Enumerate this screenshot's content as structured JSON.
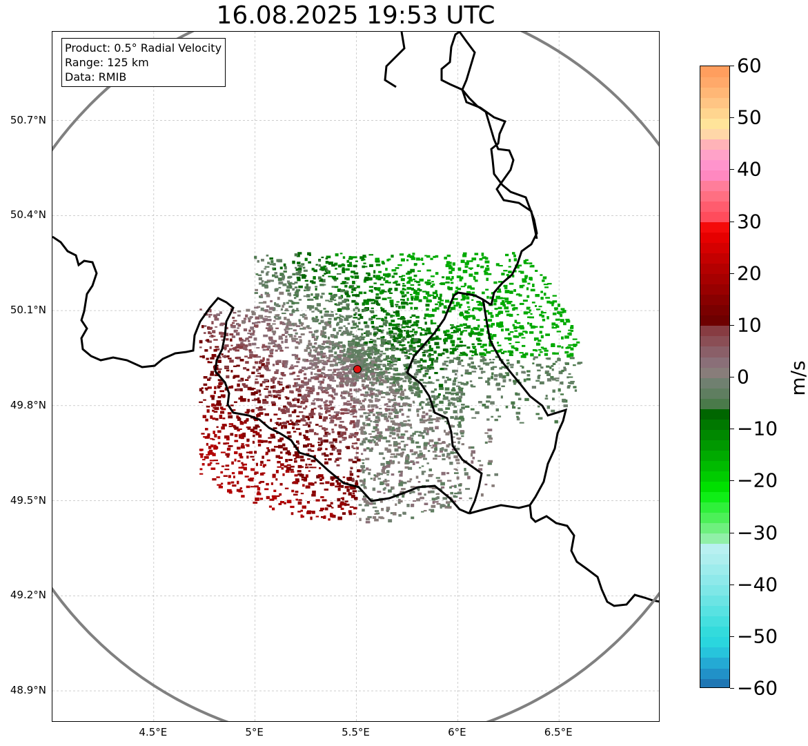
{
  "title": "16.08.2025 19:53 UTC",
  "info": {
    "product": "Product: 0.5° Radial Velocity",
    "range": "Range: 125 km",
    "data": "Data: RMIB"
  },
  "map": {
    "lon_range": [
      4.0,
      7.0
    ],
    "lat_range": [
      48.8,
      50.98
    ],
    "radar_site": {
      "lon": 5.505,
      "lat": 49.915
    },
    "range_ring_km": 125,
    "gridlines": true,
    "lat_ticks": [
      {
        "value": 50.7,
        "label": "50.7°N"
      },
      {
        "value": 50.4,
        "label": "50.4°N"
      },
      {
        "value": 50.1,
        "label": "50.1°N"
      },
      {
        "value": 49.8,
        "label": "49.8°N"
      },
      {
        "value": 49.5,
        "label": "49.5°N"
      },
      {
        "value": 49.2,
        "label": "49.2°N"
      },
      {
        "value": 48.9,
        "label": "48.9°N"
      }
    ],
    "lon_ticks": [
      {
        "value": 4.5,
        "label": "4.5°E"
      },
      {
        "value": 5.0,
        "label": "5°E"
      },
      {
        "value": 5.5,
        "label": "5.5°E"
      },
      {
        "value": 6.0,
        "label": "6°E"
      },
      {
        "value": 6.5,
        "label": "6.5°E"
      }
    ],
    "colors": {
      "ring": "#808080",
      "border": "#000000",
      "grid": "#b0b0b0",
      "radar_dot": "#e01010",
      "inbound_strong": "#008000",
      "neutral": "#7a8a72",
      "outbound_strong": "#8b0000"
    }
  },
  "colorbar": {
    "unit": "m/s",
    "vmin": -60,
    "vmax": 60,
    "ticks": [
      {
        "value": 60,
        "label": "60"
      },
      {
        "value": 50,
        "label": "50"
      },
      {
        "value": 40,
        "label": "40"
      },
      {
        "value": 30,
        "label": "30"
      },
      {
        "value": 20,
        "label": "20"
      },
      {
        "value": 10,
        "label": "10"
      },
      {
        "value": 0,
        "label": "0"
      },
      {
        "value": -10,
        "label": "−10"
      },
      {
        "value": -20,
        "label": "−20"
      },
      {
        "value": -30,
        "label": "−30"
      },
      {
        "value": -40,
        "label": "−40"
      },
      {
        "value": -50,
        "label": "−50"
      },
      {
        "value": -60,
        "label": "−60"
      }
    ],
    "stops": [
      {
        "from": -60,
        "to": -58,
        "color": "#1f77b4"
      },
      {
        "from": -58,
        "to": -56,
        "color": "#2191c8"
      },
      {
        "from": -56,
        "to": -54,
        "color": "#24aad4"
      },
      {
        "from": -54,
        "to": -52,
        "color": "#27c4dc"
      },
      {
        "from": -52,
        "to": -50,
        "color": "#2ad6de"
      },
      {
        "from": -50,
        "to": -48,
        "color": "#33dbdc"
      },
      {
        "from": -48,
        "to": -46,
        "color": "#45dfdf"
      },
      {
        "from": -46,
        "to": -44,
        "color": "#58e2e2"
      },
      {
        "from": -44,
        "to": -42,
        "color": "#6be4e4"
      },
      {
        "from": -42,
        "to": -40,
        "color": "#7ee7e7"
      },
      {
        "from": -40,
        "to": -38,
        "color": "#8ee9ea"
      },
      {
        "from": -38,
        "to": -36,
        "color": "#9decec"
      },
      {
        "from": -36,
        "to": -34,
        "color": "#adeeee"
      },
      {
        "from": -34,
        "to": -32,
        "color": "#b8f0f1"
      },
      {
        "from": -32,
        "to": -30,
        "color": "#90f0a8"
      },
      {
        "from": -30,
        "to": -28,
        "color": "#6ef07e"
      },
      {
        "from": -28,
        "to": -26,
        "color": "#4cf058"
      },
      {
        "from": -26,
        "to": -24,
        "color": "#2ff03a"
      },
      {
        "from": -24,
        "to": -22,
        "color": "#0fee16"
      },
      {
        "from": -22,
        "to": -20,
        "color": "#00e000"
      },
      {
        "from": -20,
        "to": -18,
        "color": "#00cc00"
      },
      {
        "from": -18,
        "to": -16,
        "color": "#00bb00"
      },
      {
        "from": -16,
        "to": -14,
        "color": "#00aa00"
      },
      {
        "from": -14,
        "to": -12,
        "color": "#009800"
      },
      {
        "from": -12,
        "to": -10,
        "color": "#008800"
      },
      {
        "from": -10,
        "to": -8,
        "color": "#007800"
      },
      {
        "from": -8,
        "to": -6,
        "color": "#006600"
      },
      {
        "from": -6,
        "to": -4,
        "color": "#4a7a4a"
      },
      {
        "from": -4,
        "to": -2,
        "color": "#5f7e60"
      },
      {
        "from": -2,
        "to": 0,
        "color": "#708070"
      },
      {
        "from": 0,
        "to": 2,
        "color": "#887d7a"
      },
      {
        "from": 2,
        "to": 4,
        "color": "#8a6f78"
      },
      {
        "from": 4,
        "to": 6,
        "color": "#8a5f68"
      },
      {
        "from": 6,
        "to": 8,
        "color": "#8a4e55"
      },
      {
        "from": 8,
        "to": 10,
        "color": "#873c42"
      },
      {
        "from": 10,
        "to": 12,
        "color": "#6e0000"
      },
      {
        "from": 12,
        "to": 14,
        "color": "#7a0000"
      },
      {
        "from": 14,
        "to": 16,
        "color": "#880000"
      },
      {
        "from": 16,
        "to": 18,
        "color": "#980000"
      },
      {
        "from": 18,
        "to": 20,
        "color": "#a60000"
      },
      {
        "from": 20,
        "to": 22,
        "color": "#b40000"
      },
      {
        "from": 22,
        "to": 24,
        "color": "#c40000"
      },
      {
        "from": 24,
        "to": 26,
        "color": "#d50000"
      },
      {
        "from": 26,
        "to": 28,
        "color": "#e60000"
      },
      {
        "from": 28,
        "to": 30,
        "color": "#f40a0a"
      },
      {
        "from": 30,
        "to": 32,
        "color": "#ff4c5c"
      },
      {
        "from": 32,
        "to": 34,
        "color": "#ff5c6e"
      },
      {
        "from": 34,
        "to": 36,
        "color": "#ff6f82"
      },
      {
        "from": 36,
        "to": 38,
        "color": "#ff7d9a"
      },
      {
        "from": 38,
        "to": 40,
        "color": "#ff88c0"
      },
      {
        "from": 40,
        "to": 42,
        "color": "#ff94cc"
      },
      {
        "from": 42,
        "to": 44,
        "color": "#ffa2c8"
      },
      {
        "from": 44,
        "to": 46,
        "color": "#ffb3b8"
      },
      {
        "from": 46,
        "to": 48,
        "color": "#ffd7a8"
      },
      {
        "from": 48,
        "to": 50,
        "color": "#ffe49a"
      },
      {
        "from": 50,
        "to": 52,
        "color": "#ffd58f"
      },
      {
        "from": 52,
        "to": 54,
        "color": "#ffc584"
      },
      {
        "from": 54,
        "to": 56,
        "color": "#ffb776"
      },
      {
        "from": 56,
        "to": 58,
        "color": "#ffa96a"
      },
      {
        "from": 58,
        "to": 60,
        "color": "#ff9e5e"
      }
    ]
  }
}
